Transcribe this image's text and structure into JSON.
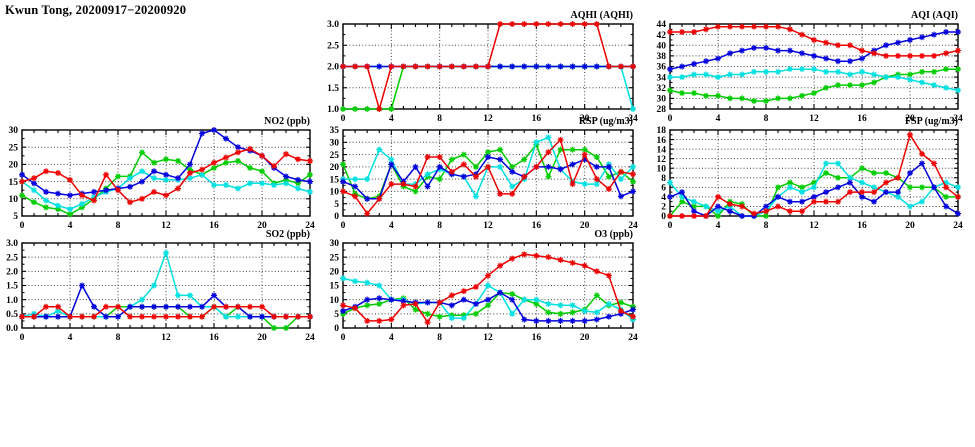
{
  "page": {
    "title": "Kwun Tong, 20200917−20200920"
  },
  "chart_data": [
    {
      "key": "aqhi",
      "type": "line",
      "title": "AQHI (AQHI)",
      "x_axis": {
        "min": 0,
        "max": 24,
        "ticks": [
          0,
          4,
          8,
          12,
          16,
          20,
          24
        ],
        "minor_step": 1
      },
      "ylim": [
        1.0,
        3.0
      ],
      "y_ticks": [
        "1.0",
        "1.5",
        "2.0",
        "2.5",
        "3.0"
      ],
      "grid": true,
      "legend": "none",
      "series": [
        {
          "name": "green",
          "color": "#00cc00",
          "values": [
            1,
            1,
            1,
            1,
            1,
            2,
            2,
            2,
            2,
            2,
            2,
            2,
            2,
            2,
            2,
            2,
            2,
            2,
            2,
            2,
            2,
            2,
            2,
            2,
            2
          ]
        },
        {
          "name": "cyan",
          "color": "#00e0e0",
          "values": [
            2,
            2,
            2,
            2,
            2,
            2,
            2,
            2,
            2,
            2,
            2,
            2,
            2,
            2,
            2,
            2,
            2,
            2,
            2,
            2,
            2,
            2,
            2,
            2,
            1
          ]
        },
        {
          "name": "blue",
          "color": "#0000dd",
          "values": [
            2,
            2,
            2,
            2,
            2,
            2,
            2,
            2,
            2,
            2,
            2,
            2,
            2,
            2,
            2,
            2,
            2,
            2,
            2,
            2,
            2,
            2,
            2,
            2,
            2
          ]
        },
        {
          "name": "red",
          "color": "#ee0000",
          "values": [
            2,
            2,
            2,
            1,
            2,
            2,
            2,
            2,
            2,
            2,
            2,
            2,
            2,
            3,
            3,
            3,
            3,
            3,
            3,
            3,
            3,
            3,
            2,
            2,
            2
          ]
        }
      ]
    },
    {
      "key": "aqi",
      "type": "line",
      "title": "AQI (AQI)",
      "x_axis": {
        "min": 0,
        "max": 24,
        "ticks": [
          0,
          4,
          8,
          12,
          16,
          20,
          24
        ],
        "minor_step": 1
      },
      "ylim": [
        28,
        44
      ],
      "y_ticks": [
        "28",
        "30",
        "32",
        "34",
        "36",
        "38",
        "40",
        "42",
        "44"
      ],
      "grid": true,
      "legend": "none",
      "series": [
        {
          "name": "green",
          "color": "#00cc00",
          "values": [
            31.5,
            31,
            31,
            30.5,
            30.5,
            30,
            30,
            29.5,
            29.5,
            30,
            30,
            30.5,
            31,
            32,
            32.5,
            32.5,
            32.5,
            33,
            34,
            34.5,
            34.5,
            35,
            35,
            35.5,
            35.5
          ]
        },
        {
          "name": "cyan",
          "color": "#00e0e0",
          "values": [
            34,
            34,
            34.5,
            34.5,
            34,
            34.5,
            34.5,
            35,
            35,
            35,
            35.5,
            35.5,
            35.5,
            35,
            35,
            34.5,
            35,
            34.5,
            34,
            34,
            33.5,
            33,
            32.5,
            32,
            31.5
          ]
        },
        {
          "name": "blue",
          "color": "#0000dd",
          "values": [
            35.5,
            36,
            36.5,
            37,
            37.5,
            38.5,
            39,
            39.5,
            39.5,
            39,
            39,
            38.5,
            38,
            37.5,
            37,
            37,
            37.5,
            39,
            40,
            40.5,
            41,
            41.5,
            42,
            42.5,
            42.5
          ]
        },
        {
          "name": "red",
          "color": "#ee0000",
          "values": [
            42.5,
            42.5,
            42.5,
            43,
            43.5,
            43.5,
            43.5,
            43.5,
            43.5,
            43.5,
            43,
            42,
            41,
            40.5,
            40,
            40,
            39,
            38.5,
            38,
            38,
            38,
            38,
            38,
            38.5,
            39
          ]
        }
      ]
    },
    {
      "key": "no2",
      "type": "line",
      "title": "NO2 (ppb)",
      "x_axis": {
        "min": 0,
        "max": 24,
        "ticks": [
          0,
          4,
          8,
          12,
          16,
          20,
          24
        ],
        "minor_step": 1
      },
      "ylim": [
        5,
        30
      ],
      "y_ticks": [
        "5",
        "10",
        "15",
        "20",
        "25",
        "30"
      ],
      "grid": true,
      "legend": "none",
      "series": [
        {
          "name": "green",
          "color": "#00cc00",
          "values": [
            11,
            9,
            7.5,
            7,
            5.5,
            7.5,
            10,
            13,
            16.5,
            16.5,
            23.5,
            20.5,
            21.5,
            21,
            18.5,
            17,
            19,
            20.5,
            21,
            19,
            18,
            14.5,
            15.5,
            14.5,
            17
          ]
        },
        {
          "name": "cyan",
          "color": "#00e0e0",
          "values": [
            15,
            12.5,
            9.5,
            8,
            7,
            8.5,
            10.5,
            12,
            13,
            16,
            18,
            16,
            15.5,
            15.5,
            16,
            17,
            14,
            14,
            13,
            14.5,
            14.5,
            14,
            14.5,
            13,
            12
          ]
        },
        {
          "name": "blue",
          "color": "#0000dd",
          "values": [
            17,
            14.5,
            12,
            11.5,
            11,
            11.5,
            12,
            12.5,
            13,
            13.5,
            15,
            18,
            17,
            16,
            20,
            29,
            30,
            27.5,
            25,
            24,
            22.5,
            19,
            16.5,
            15.5,
            15
          ]
        },
        {
          "name": "red",
          "color": "#ee0000",
          "values": [
            15,
            16,
            18,
            17.5,
            15.5,
            11,
            9.5,
            17,
            12.5,
            9,
            10,
            12,
            11,
            13,
            17.5,
            18.5,
            20.5,
            22,
            23.5,
            24.5,
            22.5,
            19.5,
            23,
            21.5,
            21
          ]
        }
      ]
    },
    {
      "key": "rsp",
      "type": "line",
      "title": "RSP (ug/m3)",
      "x_axis": {
        "min": 0,
        "max": 24,
        "ticks": [
          0,
          4,
          8,
          12,
          16,
          20,
          24
        ],
        "minor_step": 1
      },
      "ylim": [
        0,
        35
      ],
      "y_ticks": [
        "0",
        "5",
        "10",
        "15",
        "20",
        "25",
        "30",
        "35"
      ],
      "grid": true,
      "legend": "none",
      "series": [
        {
          "name": "green",
          "color": "#00cc00",
          "values": [
            21,
            9,
            7,
            8,
            21,
            12,
            10,
            16,
            15,
            23,
            25,
            20,
            26,
            27,
            20,
            23,
            29,
            16,
            27,
            27,
            27,
            24,
            16,
            18,
            14
          ]
        },
        {
          "name": "cyan",
          "color": "#00e0e0",
          "values": [
            15,
            15,
            15,
            27,
            23,
            13,
            13,
            17,
            19,
            17,
            16,
            8,
            20,
            20,
            12,
            15,
            30,
            32,
            19,
            14,
            13,
            13,
            21,
            15,
            20
          ]
        },
        {
          "name": "blue",
          "color": "#0000dd",
          "values": [
            14,
            12,
            7,
            7,
            21,
            14,
            20,
            12,
            20,
            17,
            16,
            17,
            24,
            23,
            18,
            16,
            20,
            20,
            19,
            21,
            23,
            20,
            20,
            8,
            10
          ]
        },
        {
          "name": "red",
          "color": "#ee0000",
          "values": [
            10,
            8,
            1,
            7,
            13,
            13,
            12,
            24,
            24,
            18,
            21,
            16,
            20,
            9,
            9,
            16,
            20,
            26,
            31,
            13,
            25,
            15,
            11,
            18,
            17
          ]
        }
      ]
    },
    {
      "key": "fsp",
      "type": "line",
      "title": "FSP (ug/m3)",
      "x_axis": {
        "min": 0,
        "max": 24,
        "ticks": [
          0,
          4,
          8,
          12,
          16,
          20,
          24
        ],
        "minor_step": 1
      },
      "ylim": [
        0,
        18
      ],
      "y_ticks": [
        "0",
        "2",
        "4",
        "6",
        "8",
        "10",
        "12",
        "14",
        "16",
        "18"
      ],
      "grid": true,
      "legend": "none",
      "series": [
        {
          "name": "green",
          "color": "#00cc00",
          "values": [
            0,
            3,
            2,
            2,
            0,
            3,
            2.5,
            0,
            0,
            6,
            7,
            6,
            7,
            9,
            8,
            8,
            10,
            9,
            9,
            8,
            6,
            6,
            6,
            4,
            4
          ]
        },
        {
          "name": "cyan",
          "color": "#00e0e0",
          "values": [
            7,
            4,
            3,
            2,
            1,
            2,
            0,
            0,
            1,
            4,
            6,
            5,
            6,
            11,
            11,
            8,
            7,
            6,
            5,
            4,
            2,
            3,
            6,
            7,
            6
          ]
        },
        {
          "name": "blue",
          "color": "#0000dd",
          "values": [
            4,
            5,
            1,
            0,
            2,
            1,
            0,
            0,
            2,
            4,
            3,
            3,
            4,
            5,
            6,
            7,
            4,
            3,
            5,
            5,
            9,
            11,
            6,
            2,
            0.5
          ]
        },
        {
          "name": "red",
          "color": "#ee0000",
          "values": [
            0,
            0,
            0,
            0,
            4,
            2.5,
            2,
            0.5,
            1,
            2,
            1,
            1,
            3,
            3,
            3,
            5,
            5,
            5,
            7,
            8,
            17,
            13,
            11,
            6,
            4
          ]
        }
      ]
    },
    {
      "key": "so2",
      "type": "line",
      "title": "SO2 (ppb)",
      "x_axis": {
        "min": 0,
        "max": 24,
        "ticks": [
          0,
          4,
          8,
          12,
          16,
          20,
          24
        ],
        "minor_step": 1
      },
      "ylim": [
        0.0,
        3.0
      ],
      "y_ticks": [
        "0.0",
        "0.5",
        "1.0",
        "1.5",
        "2.0",
        "2.5",
        "3.0"
      ],
      "grid": true,
      "legend": "none",
      "series": [
        {
          "name": "green",
          "color": "#00cc00",
          "values": [
            0.4,
            0.4,
            0.4,
            0.4,
            0.4,
            0.4,
            0.4,
            0.4,
            0.75,
            0.75,
            0.75,
            0.75,
            0.75,
            0.75,
            0.4,
            0.4,
            0.75,
            0.4,
            0.75,
            0.4,
            0.4,
            0,
            0,
            0.4,
            0.4
          ]
        },
        {
          "name": "cyan",
          "color": "#00e0e0",
          "values": [
            0.4,
            0.5,
            0.4,
            0.6,
            0.4,
            0.4,
            0.4,
            0.4,
            0.4,
            0.75,
            1,
            1.5,
            2.65,
            1.15,
            1.15,
            0.75,
            0.75,
            0.4,
            0.4,
            0.4,
            0.4,
            0.4,
            0.4,
            0.4,
            0.4
          ]
        },
        {
          "name": "blue",
          "color": "#0000dd",
          "values": [
            0.4,
            0.4,
            0.4,
            0.4,
            0.4,
            1.5,
            0.75,
            0.4,
            0.4,
            0.75,
            0.75,
            0.75,
            0.75,
            0.75,
            0.75,
            0.75,
            1.15,
            0.75,
            0.75,
            0.4,
            0.4,
            0.4,
            0.4,
            0.4,
            0.4
          ]
        },
        {
          "name": "red",
          "color": "#ee0000",
          "values": [
            0.4,
            0.4,
            0.75,
            0.75,
            0.4,
            0.4,
            0.4,
            0.75,
            0.75,
            0.4,
            0.4,
            0.4,
            0.4,
            0.4,
            0.4,
            0.4,
            0.75,
            0.75,
            0.75,
            0.75,
            0.75,
            0.4,
            0.4,
            0.4,
            0.4
          ]
        }
      ]
    },
    {
      "key": "o3",
      "type": "line",
      "title": "O3 (ppb)",
      "x_axis": {
        "min": 0,
        "max": 24,
        "ticks": [
          0,
          4,
          8,
          12,
          16,
          20,
          24
        ],
        "minor_step": 1
      },
      "ylim": [
        0,
        30
      ],
      "y_ticks": [
        "0",
        "5",
        "10",
        "15",
        "20",
        "25",
        "30"
      ],
      "grid": true,
      "legend": "none",
      "series": [
        {
          "name": "green",
          "color": "#00cc00",
          "values": [
            5,
            7,
            8,
            8.5,
            10,
            10.5,
            6.5,
            5,
            4,
            4.5,
            4.5,
            5,
            8,
            12.5,
            12,
            10,
            8.5,
            5.5,
            5,
            5.5,
            6.5,
            11.5,
            8,
            9,
            7.5
          ]
        },
        {
          "name": "cyan",
          "color": "#00e0e0",
          "values": [
            17.5,
            16.5,
            16,
            15,
            10,
            10,
            8.5,
            9,
            9,
            3.5,
            3.5,
            8.5,
            15,
            12.5,
            5,
            10,
            10,
            8.5,
            8,
            8,
            6,
            5.5,
            8.5,
            6.5,
            3
          ]
        },
        {
          "name": "blue",
          "color": "#0000dd",
          "values": [
            6,
            7.5,
            10,
            10.5,
            10,
            9.5,
            9,
            9,
            9,
            8,
            10,
            8.5,
            10,
            12.5,
            10,
            3,
            2.5,
            2.5,
            2.5,
            2.5,
            2.5,
            3,
            4,
            5,
            6.5
          ]
        },
        {
          "name": "red",
          "color": "#ee0000",
          "values": [
            8,
            7,
            2.5,
            2.5,
            3,
            8,
            8.5,
            2,
            9,
            11.5,
            13,
            14.5,
            18.5,
            22,
            24.5,
            26,
            25.5,
            25,
            24,
            23,
            22,
            20,
            18.5,
            6,
            4
          ]
        }
      ]
    }
  ]
}
